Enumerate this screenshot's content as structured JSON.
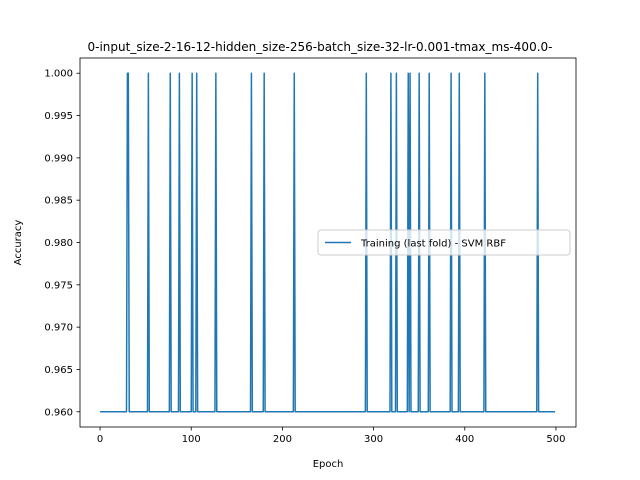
{
  "chart_data": {
    "type": "line",
    "title": "0-input_size-2-16-12-hidden_size-256-batch_size-32-lr-0.001-tmax_ms-400.0-",
    "xlabel": "Epoch",
    "ylabel": "Accuracy",
    "xlim": [
      -22,
      522
    ],
    "ylim": [
      0.9582,
      1.0018
    ],
    "xticks": [
      0,
      100,
      200,
      300,
      400,
      500
    ],
    "xtick_labels": [
      "0",
      "100",
      "200",
      "300",
      "400",
      "500"
    ],
    "yticks": [
      0.96,
      0.965,
      0.97,
      0.975,
      0.98,
      0.985,
      0.99,
      0.995,
      1.0
    ],
    "ytick_labels": [
      "0.960",
      "0.965",
      "0.970",
      "0.975",
      "0.980",
      "0.985",
      "0.990",
      "0.995",
      "1.000"
    ],
    "grid": false,
    "legend_position": "center-right",
    "series": [
      {
        "name": "Training (last fold) - SVM RBF",
        "color": "#1f77b4",
        "x_range": [
          0,
          499
        ],
        "baseline": 0.96,
        "peak": 1.0,
        "spike_epochs": [
          30,
          31,
          53,
          77,
          87,
          101,
          106,
          127,
          166,
          180,
          213,
          292,
          319,
          325,
          338,
          340,
          350,
          361,
          385,
          394,
          422,
          480
        ]
      }
    ]
  }
}
